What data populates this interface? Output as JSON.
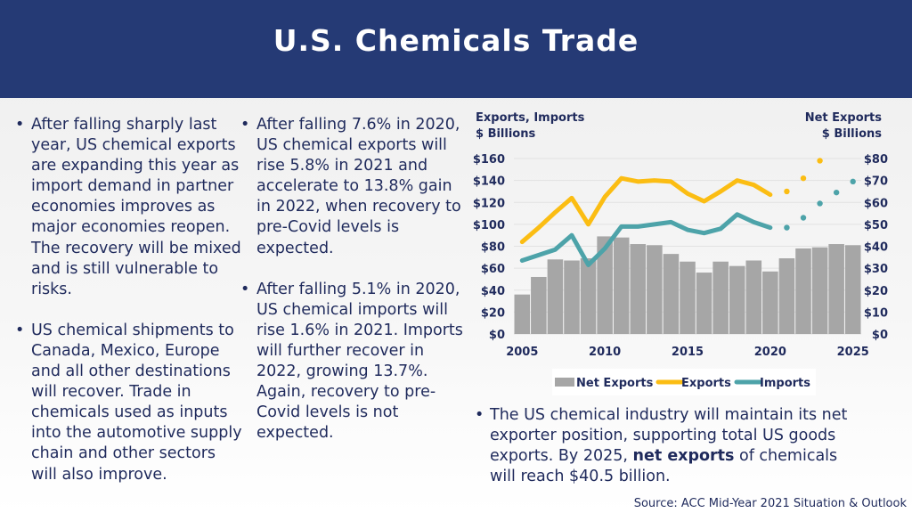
{
  "title": "U.S. Chemicals Trade",
  "left_column": {
    "bullets": [
      "After falling sharply last year, US chemical exports are expanding this year as import demand in partner economies improves as major economies reopen. The recovery will be mixed and is still vulnerable to risks.",
      "US chemical shipments to Canada, Mexico, Europe and all other destinations will recover. Trade in chemicals used as inputs into the automotive supply chain and other sectors will also improve."
    ]
  },
  "middle_column": {
    "bullets": [
      "After falling 7.6% in 2020, US chemical exports will rise 5.8% in 2021 and accelerate to 13.8% gain in 2022, when recovery to pre-Covid levels is expected.",
      "After falling 5.1% in 2020, US chemical imports will rise 1.6% in 2021. Imports will further recover in 2022, growing 13.7%. Again, recovery to pre-Covid levels is not expected."
    ]
  },
  "bottom_note": {
    "before": "The US chemical industry will maintain its net exporter position, supporting total US goods exports. By 2025, ",
    "bold": "net exports",
    "after": " of chemicals will reach $40.5 billion."
  },
  "source": "Source: ACC Mid-Year 2021 Situation & Outlook",
  "colors": {
    "header": "#253a75",
    "bars": "#a6a6a6",
    "exports": "#fbbd13",
    "imports": "#4da3a9",
    "text": "#1f2a5c"
  },
  "chart_data": {
    "type": "bar+line",
    "left_axis_label": [
      "Exports, Imports",
      "$ Billions"
    ],
    "right_axis_label": [
      "Net Exports",
      "$ Billions"
    ],
    "x": [
      2005,
      2006,
      2007,
      2008,
      2009,
      2010,
      2011,
      2012,
      2013,
      2014,
      2015,
      2016,
      2017,
      2018,
      2019,
      2020,
      2021,
      2022,
      2023,
      2024,
      2025
    ],
    "xlim": [
      2004.5,
      2025.5
    ],
    "x_ticks": [
      2005,
      2010,
      2015,
      2020,
      2025
    ],
    "left_ylim": [
      0,
      160
    ],
    "left_ticks": [
      "$0",
      "$20",
      "$40",
      "$60",
      "$80",
      "$100",
      "$120",
      "$140",
      "$160"
    ],
    "right_ylim": [
      0,
      80
    ],
    "right_ticks": [
      "$0",
      "$10",
      "$20",
      "$30",
      "$40",
      "$50",
      "$60",
      "$70",
      "$80"
    ],
    "grid": true,
    "legend": [
      "Net Exports",
      "Exports",
      "Imports"
    ],
    "legend_position": "bottom",
    "series": [
      {
        "name": "Net Exports",
        "type": "bar",
        "axis": "right",
        "values": [
          18,
          26,
          34,
          33.5,
          34.5,
          44.5,
          44,
          41,
          40.5,
          36.5,
          33,
          28,
          33,
          31,
          33.5,
          28.5,
          34.5,
          39,
          39.5,
          41,
          40.5
        ]
      },
      {
        "name": "Exports",
        "type": "line",
        "axis": "left",
        "actual": [
          [
            2005,
            84
          ],
          [
            2006,
            97
          ],
          [
            2007,
            111
          ],
          [
            2008,
            124
          ],
          [
            2009,
            100
          ],
          [
            2010,
            125
          ],
          [
            2011,
            142
          ],
          [
            2012,
            139
          ],
          [
            2013,
            140
          ],
          [
            2014,
            139
          ],
          [
            2015,
            128
          ],
          [
            2016,
            121
          ],
          [
            2017,
            130
          ],
          [
            2018,
            140
          ],
          [
            2019,
            136
          ],
          [
            2020,
            127
          ]
        ],
        "forecast": [
          [
            2021,
            130
          ],
          [
            2022,
            142
          ],
          [
            2023,
            158
          ]
        ]
      },
      {
        "name": "Imports",
        "type": "line",
        "axis": "left",
        "actual": [
          [
            2005,
            67
          ],
          [
            2006,
            72
          ],
          [
            2007,
            77
          ],
          [
            2008,
            90
          ],
          [
            2009,
            63
          ],
          [
            2010,
            78
          ],
          [
            2011,
            98
          ],
          [
            2012,
            98
          ],
          [
            2013,
            100
          ],
          [
            2014,
            102
          ],
          [
            2015,
            95
          ],
          [
            2016,
            92
          ],
          [
            2017,
            96
          ],
          [
            2018,
            109
          ],
          [
            2019,
            102
          ],
          [
            2020,
            97
          ]
        ],
        "forecast": [
          [
            2021,
            97
          ],
          [
            2022,
            106
          ],
          [
            2023,
            119
          ],
          [
            2024,
            129
          ],
          [
            2025,
            139
          ]
        ]
      }
    ]
  }
}
